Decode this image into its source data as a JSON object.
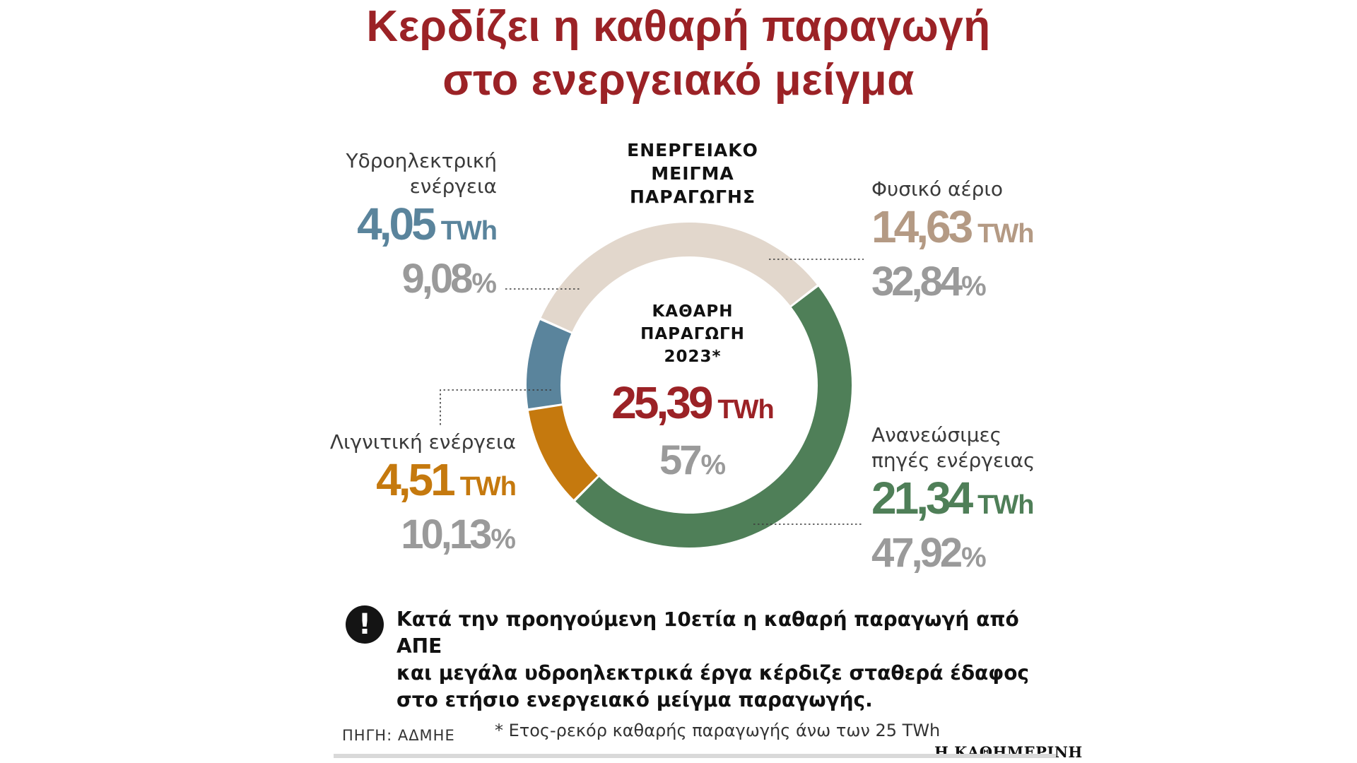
{
  "title": {
    "line1": "Κερδίζει η καθαρή παραγωγή",
    "line2": "στο ενεργειακό μείγμα"
  },
  "chart_data": {
    "type": "pie",
    "title": "ΕΝΕΡΓΕΙΑΚΟ ΜΕΙΓΜΑ ΠΑΡΑΓΩΓΗΣ",
    "title_lines": [
      "ΕΝΕΡΓΕΙΑΚΟ",
      "ΜΕΙΓΜΑ",
      "ΠΑΡΑΓΩΓΗΣ"
    ],
    "unit": "TWh",
    "center": {
      "heading_lines": [
        "ΚΑΘΑΡΗ",
        "ΠΑΡΑΓΩΓΗ",
        "2023*"
      ],
      "value": "25,39",
      "unit": "TWh",
      "percent": "57",
      "percent_symbol": "%"
    },
    "slices": [
      {
        "key": "gas",
        "name_lines": [
          "Φυσικό αέριο"
        ],
        "value": 14.63,
        "value_label": "14,63",
        "percent": 32.84,
        "percent_label": "32,84",
        "color": "#e2d7cc",
        "text_color": "#b49a84"
      },
      {
        "key": "renewables",
        "name_lines": [
          "Ανανεώσιμες",
          "πηγές ενέργειας"
        ],
        "value": 21.34,
        "value_label": "21,34",
        "percent": 47.92,
        "percent_label": "47,92",
        "color": "#4f7f58",
        "text_color": "#4f7f58"
      },
      {
        "key": "lignite",
        "name_lines": [
          "Λιγνιτική ενέργεια"
        ],
        "value": 4.51,
        "value_label": "4,51",
        "percent": 10.13,
        "percent_label": "10,13",
        "color": "#c5790e",
        "text_color": "#c5790e"
      },
      {
        "key": "hydro",
        "name_lines": [
          "Υδροηλεκτρική",
          "ενέργεια"
        ],
        "value": 4.05,
        "value_label": "4,05",
        "percent": 9.08,
        "percent_label": "9,08",
        "color": "#5a849c",
        "text_color": "#5a849c"
      }
    ]
  },
  "note": {
    "icon": "exclamation-icon",
    "lines": [
      "Κατά την προηγούμενη 10ετία η καθαρή παραγωγή από ΑΠΕ",
      "και μεγάλα υδροηλεκτρικά έργα κέρδιζε σταθερά έδαφος",
      "στο ετήσιο ενεργειακό μείγμα παραγωγής."
    ]
  },
  "footer": {
    "source": "ΠΗΓΗ: ΑΔΜΗΕ",
    "footnote": "* Ετος-ρεκόρ καθαρής παραγωγής άνω των 25 TWh",
    "brand": "Η ΚΑΘΗΜΕΡΙΝΗ"
  }
}
